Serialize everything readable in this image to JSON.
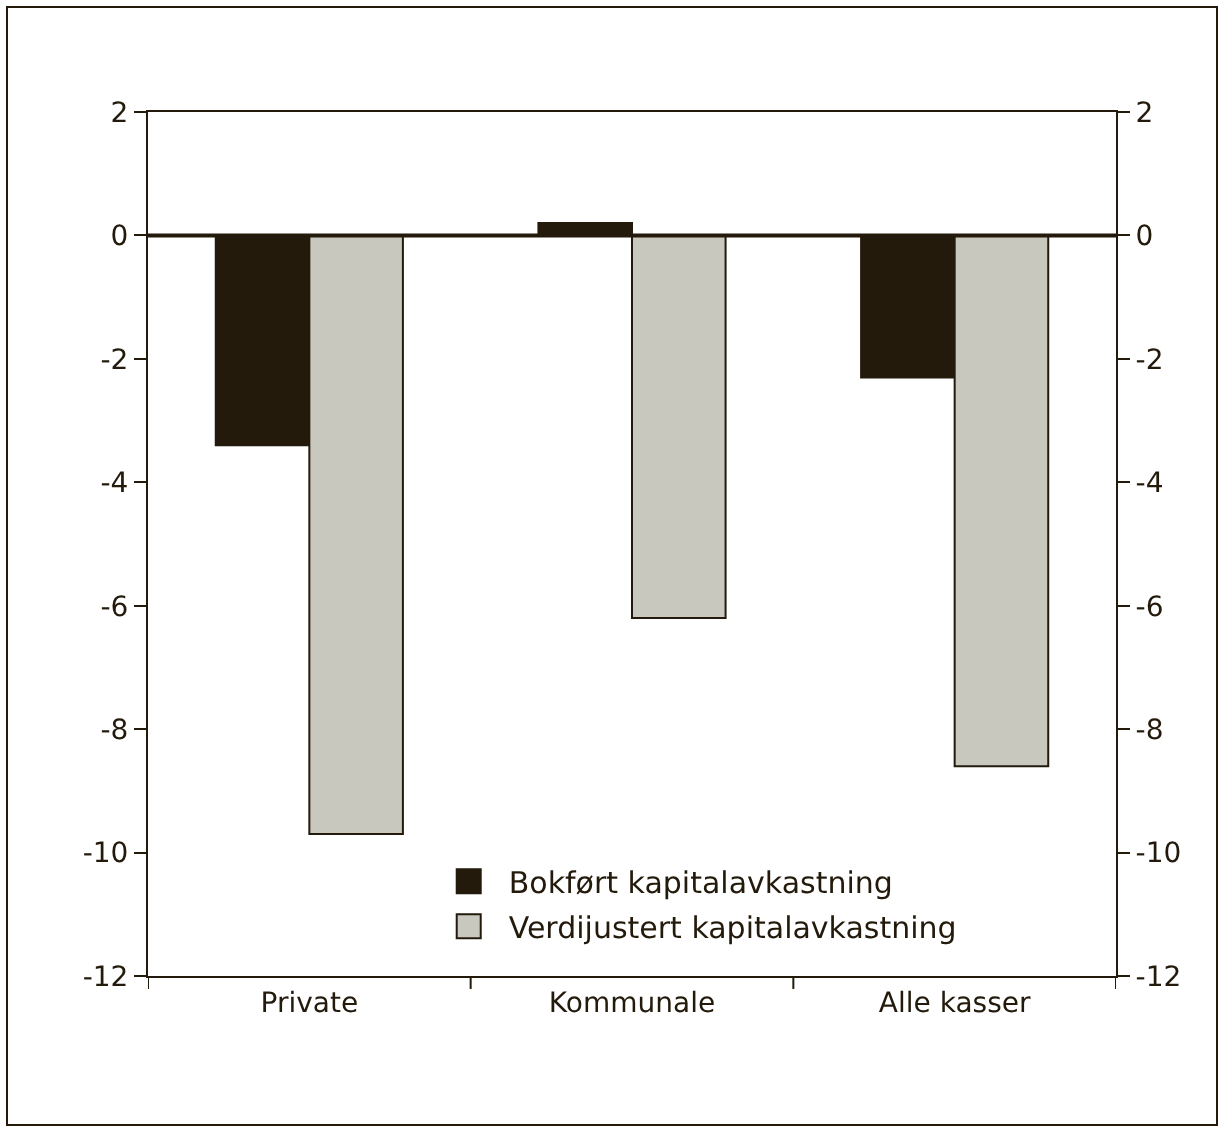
{
  "chart_data": {
    "type": "bar",
    "categories": [
      "Private",
      "Kommunale",
      "Alle kasser"
    ],
    "series": [
      {
        "name": "Bokført kapitalavkastning",
        "color": "#231a0c",
        "values": [
          -3.4,
          0.2,
          -2.3
        ]
      },
      {
        "name": "Verdijustert kapitalavkastning",
        "color": "#c8c8be",
        "values": [
          -9.7,
          -6.2,
          -8.6
        ]
      }
    ],
    "ylim": [
      -12,
      2
    ],
    "yticks": [
      -12,
      -10,
      -8,
      -6,
      -4,
      -2,
      0,
      2
    ],
    "y2lim": [
      -12,
      2
    ],
    "y2ticks": [
      -12,
      -10,
      -8,
      -6,
      -4,
      -2,
      0,
      2
    ],
    "ref_lines": [
      {
        "axis": "y",
        "value": 0,
        "color": "#231a0c"
      }
    ],
    "grid": false,
    "legend": "bottom"
  }
}
